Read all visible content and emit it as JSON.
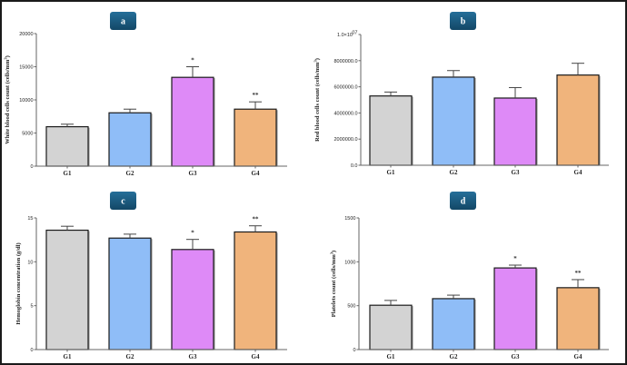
{
  "figure": {
    "panel_badge_color": "#1a5a80",
    "group_colors": {
      "G1": "#d3d3d3",
      "G2": "#8fbdf7",
      "G3": "#de8af7",
      "G4": "#f0b47c"
    }
  },
  "chart_data": [
    {
      "id": "a",
      "type": "bar",
      "panel_label": "a",
      "title": "",
      "xlabel": "",
      "ylabel": "White blood cells count (cells/mm",
      "ylabel_sup": "3",
      "ylabel_tail": ")",
      "categories": [
        "G1",
        "G2",
        "G3",
        "G4"
      ],
      "values": [
        5950,
        8050,
        13400,
        8600
      ],
      "error": [
        380,
        550,
        1600,
        1100
      ],
      "significance": [
        "",
        "",
        "*",
        "**"
      ],
      "ylim": [
        0,
        20000
      ],
      "yticks": [
        0,
        5000,
        10000,
        15000,
        20000
      ],
      "ytick_labels": [
        "0",
        "5000",
        "10000",
        "15000",
        "20000"
      ],
      "grid": false,
      "legend": "none"
    },
    {
      "id": "b",
      "type": "bar",
      "panel_label": "b",
      "title": "",
      "xlabel": "",
      "ylabel": "Red blood cells count (cells/mm",
      "ylabel_sup": "3",
      "ylabel_tail": ")",
      "categories": [
        "G1",
        "G2",
        "G3",
        "G4"
      ],
      "values": [
        5300000,
        6740000,
        5140000,
        6900000
      ],
      "error": [
        300000,
        500000,
        800000,
        900000
      ],
      "significance": [
        "",
        "",
        "",
        ""
      ],
      "ylim": [
        0,
        10000000
      ],
      "yticks": [
        0,
        2000000,
        4000000,
        6000000,
        8000000,
        10000000
      ],
      "ytick_labels": [
        "0.0",
        "2000000.0",
        "4000000.0",
        "6000000.0",
        "8000000.0",
        "1.0×10"
      ],
      "ytick_top_sup": "07",
      "grid": false,
      "legend": "none"
    },
    {
      "id": "c",
      "type": "bar",
      "panel_label": "c",
      "title": "",
      "xlabel": "",
      "ylabel": "Hemoglobin concentration (g/dl)",
      "ylabel_sup": "",
      "ylabel_tail": "",
      "categories": [
        "G1",
        "G2",
        "G3",
        "G4"
      ],
      "values": [
        13.6,
        12.7,
        11.4,
        13.4
      ],
      "error": [
        0.45,
        0.45,
        1.15,
        0.7
      ],
      "significance": [
        "",
        "",
        "*",
        "**"
      ],
      "ylim": [
        0,
        15
      ],
      "yticks": [
        0,
        5,
        10,
        15
      ],
      "ytick_labels": [
        "0",
        "5",
        "10",
        "15"
      ],
      "grid": false,
      "legend": "none"
    },
    {
      "id": "d",
      "type": "bar",
      "panel_label": "d",
      "title": "",
      "xlabel": "",
      "ylabel": "Platelets count (cells/mm",
      "ylabel_sup": "3",
      "ylabel_tail": ")",
      "categories": [
        "G1",
        "G2",
        "G3",
        "G4"
      ],
      "values": [
        505,
        580,
        930,
        705
      ],
      "error": [
        55,
        40,
        32,
        92
      ],
      "significance": [
        "",
        "",
        "*",
        "**"
      ],
      "ylim": [
        0,
        1500
      ],
      "yticks": [
        0,
        500,
        1000,
        1500
      ],
      "ytick_labels": [
        "0",
        "500",
        "1000",
        "1500"
      ],
      "grid": false,
      "legend": "none"
    }
  ]
}
